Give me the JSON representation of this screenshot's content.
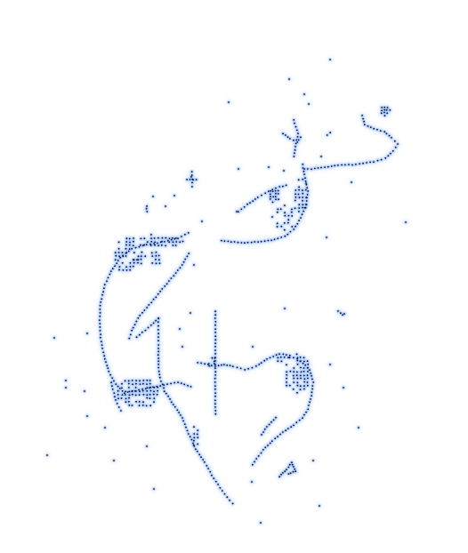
{
  "artwork": {
    "subject": "",
    "dot_color": "#0b1030",
    "glow_color": "#9fc3ff",
    "background": "#ffffff"
  }
}
